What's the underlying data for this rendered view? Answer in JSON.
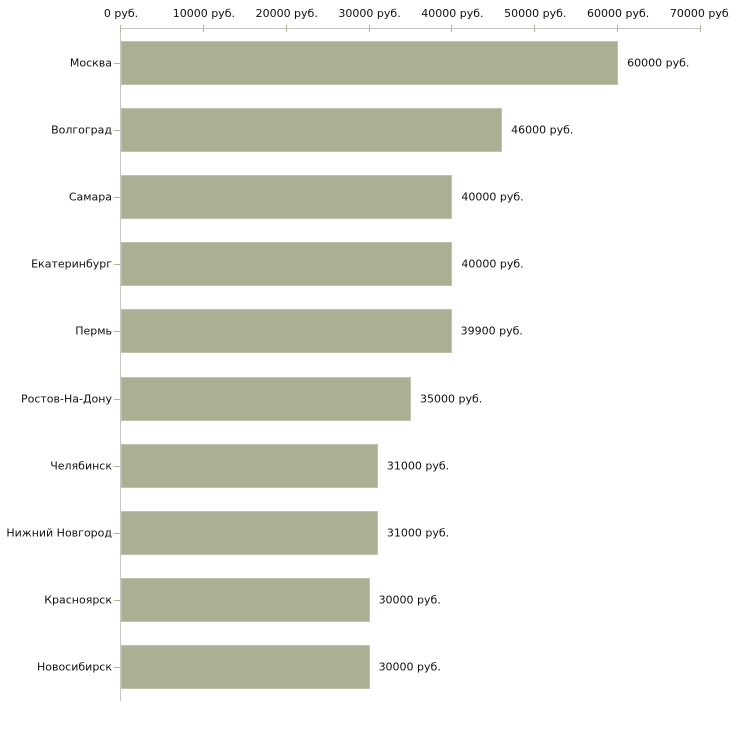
{
  "chart_data": {
    "type": "bar",
    "orientation": "horizontal",
    "title": "",
    "categories": [
      "Москва",
      "Волгоград",
      "Самара",
      "Екатеринбург",
      "Пермь",
      "Ростов-На-Дону",
      "Челябинск",
      "Нижний Новгород",
      "Красноярск",
      "Новосибирск"
    ],
    "values": [
      60000,
      46000,
      40000,
      40000,
      39900,
      35000,
      31000,
      31000,
      30000,
      30000
    ],
    "value_labels": [
      "60000 руб.",
      "46000 руб.",
      "40000 руб.",
      "40000 руб.",
      "39900 руб.",
      "35000 руб.",
      "31000 руб.",
      "31000 руб.",
      "30000 руб.",
      "30000 руб."
    ],
    "xlabel": "",
    "ylabel": "",
    "x_axis": {
      "position": "top",
      "min": 0,
      "max": 70000,
      "tick_interval": 10000,
      "tick_values": [
        0,
        10000,
        20000,
        30000,
        40000,
        50000,
        60000,
        70000
      ],
      "tick_labels": [
        "0 руб.",
        "10000 руб.",
        "20000 руб.",
        "30000 руб.",
        "40000 руб.",
        "50000 руб.",
        "60000 руб.",
        "70000 руб."
      ]
    },
    "grid": false,
    "legend": false,
    "colors": {
      "bar_fill": "#abb095",
      "bar_edge": "#bfc3aa",
      "axis_line": "#c6c6c0",
      "tick_mark": "#b3b596",
      "label_text": "#111111",
      "background": "#ffffff"
    }
  }
}
